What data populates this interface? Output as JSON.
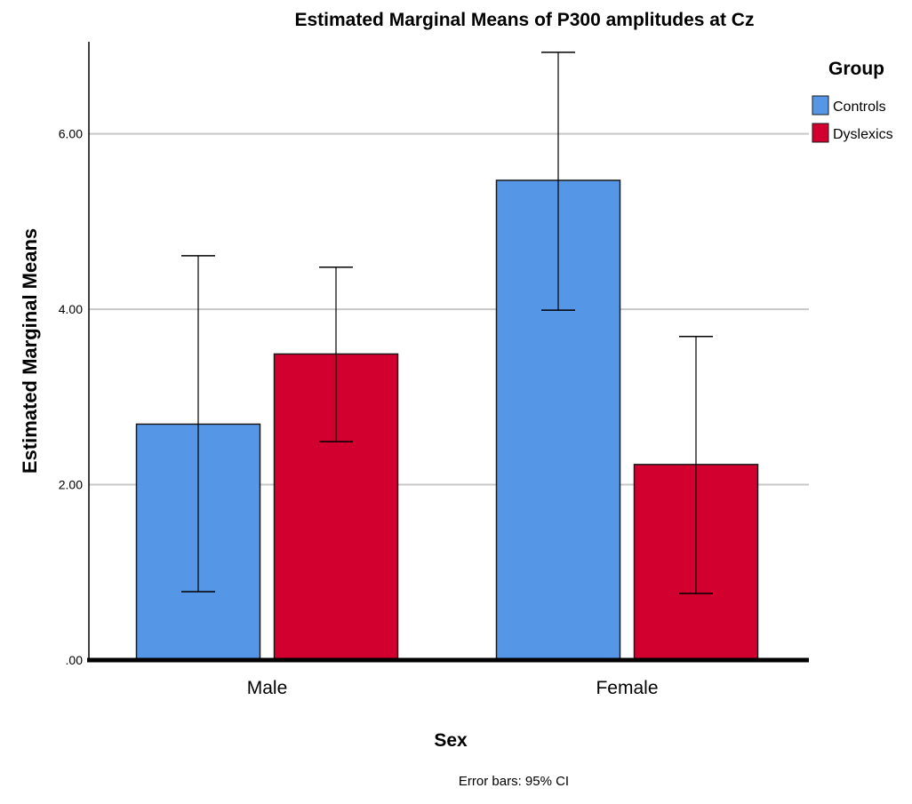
{
  "chart_data": {
    "type": "bar",
    "title": "Estimated Marginal Means of P300 amplitudes at Cz",
    "xlabel": "Sex",
    "ylabel": "Estimated Marginal Means",
    "categories": [
      "Male",
      "Female"
    ],
    "ylim": [
      0,
      7.05
    ],
    "yticks": [
      0,
      2,
      4,
      6
    ],
    "ytick_labels": [
      ".00",
      "2.00",
      "4.00",
      "6.00"
    ],
    "grid": true,
    "legend": {
      "title": "Group",
      "position": "right"
    },
    "series": [
      {
        "name": "Controls",
        "color": "#5596e6",
        "values": [
          2.69,
          5.47
        ],
        "ci_low": [
          0.78,
          3.99
        ],
        "ci_high": [
          4.61,
          6.93
        ]
      },
      {
        "name": "Dyslexics",
        "color": "#d2002f",
        "values": [
          3.49,
          2.23
        ],
        "ci_low": [
          2.49,
          0.76
        ],
        "ci_high": [
          4.48,
          3.69
        ]
      }
    ],
    "annotation": "Error bars: 95% CI"
  }
}
